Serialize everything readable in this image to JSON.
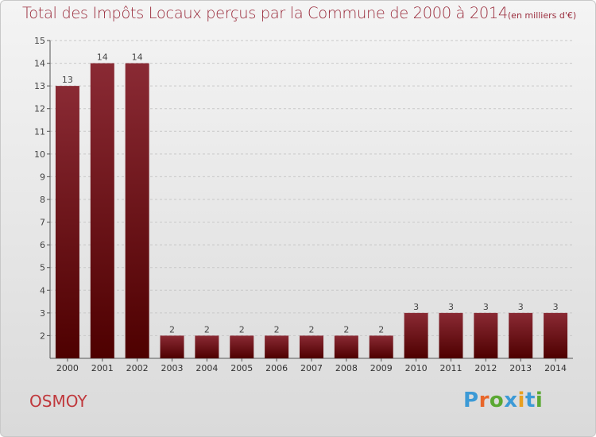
{
  "title": "Total des Impôts Locaux perçus par la Commune de 2000 à 2014",
  "unit_note": "(en milliers d'€)",
  "commune": "OSMOY",
  "logo": {
    "text": "Proxiti",
    "letter_colors": [
      "#3c9ad6",
      "#e8662a",
      "#5aa832",
      "#3c9ad6",
      "#e8a020",
      "#3c9ad6",
      "#5aa832"
    ]
  },
  "chart_data": {
    "type": "bar",
    "title": "Total des Impôts Locaux perçus par la Commune de 2000 à 2014",
    "ylabel": "en milliers d'€",
    "xlabel": "",
    "categories": [
      "2000",
      "2001",
      "2002",
      "2003",
      "2004",
      "2005",
      "2006",
      "2007",
      "2008",
      "2009",
      "2010",
      "2011",
      "2012",
      "2013",
      "2014"
    ],
    "values": [
      13,
      14,
      14,
      2,
      2,
      2,
      2,
      2,
      2,
      2,
      3,
      3,
      3,
      3,
      3
    ],
    "data_labels": [
      "13",
      "14",
      "14",
      "2",
      "2",
      "2",
      "2",
      "2",
      "2",
      "2",
      "3",
      "3",
      "3",
      "3",
      "3"
    ],
    "ylim": [
      1,
      15
    ],
    "yticks": [
      2,
      3,
      4,
      5,
      6,
      7,
      8,
      9,
      10,
      11,
      12,
      13,
      14,
      15
    ],
    "grid": true,
    "bar_color_top": "#8a2a34",
    "bar_color_bottom": "#4e0000"
  }
}
